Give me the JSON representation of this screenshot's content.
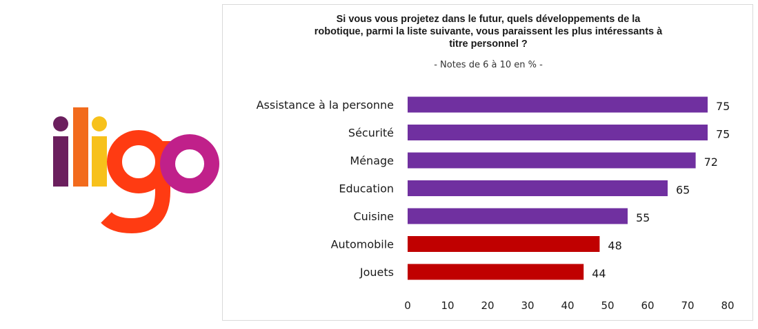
{
  "logo": {
    "text": "iligo"
  },
  "chart_data": {
    "type": "bar",
    "orientation": "horizontal",
    "title": "Si vous vous projetez dans le futur, quels développements de la robotique, parmi la liste suivante, vous paraissent les plus intéressants à titre personnel ?",
    "title_lines": [
      "Si vous vous projetez dans le futur, quels développements de la",
      "robotique, parmi la liste suivante, vous paraissent les plus intéressants à",
      "titre personnel ?"
    ],
    "subtitle": "- Notes de 6 à 10 en % -",
    "categories": [
      "Assistance à la personne",
      "Sécurité",
      "Ménage",
      "Education",
      "Cuisine",
      "Automobile",
      "Jouets"
    ],
    "values": [
      75,
      75,
      72,
      65,
      55,
      48,
      44
    ],
    "bar_colors": [
      "#7030a0",
      "#7030a0",
      "#7030a0",
      "#7030a0",
      "#7030a0",
      "#c00000",
      "#c00000"
    ],
    "xlim": [
      0,
      80
    ],
    "xticks": [
      0,
      10,
      20,
      30,
      40,
      50,
      60,
      70,
      80
    ],
    "grid": false,
    "legend": "none"
  },
  "colors": {
    "purple": "#7030a0",
    "red": "#c00000"
  }
}
